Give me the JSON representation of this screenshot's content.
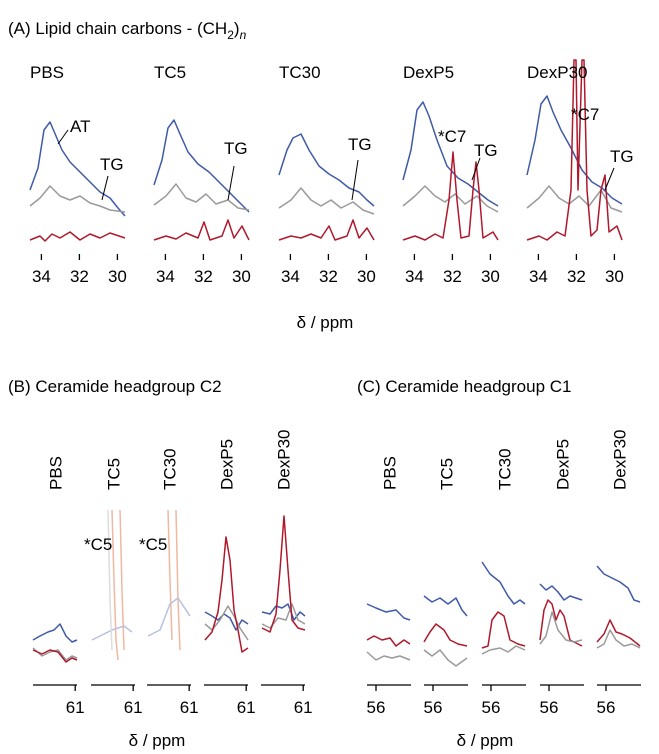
{
  "panel_a": {
    "title": {
      "text": "(A) Lipid chain carbons - (CH",
      "sub": "2",
      "close": ")",
      "sub2": "n"
    },
    "subpanels": [
      "PBS",
      "TC5",
      "TC30",
      "DexP5",
      "DexP30"
    ],
    "xlim": [
      34.6,
      29.6
    ],
    "xticks": [
      34,
      32,
      30
    ],
    "xlabel": "δ / ppm",
    "annotations": [
      "AT",
      "TG",
      "TG",
      "TG",
      "*C7",
      "TG",
      "*C7",
      "TG"
    ]
  },
  "panel_b": {
    "title": "(B) Ceramide headgroup C2",
    "subpanels": [
      "PBS",
      "TC5",
      "TC30",
      "DexP5",
      "DexP30"
    ],
    "xlim": [
      62.5,
      60.9
    ],
    "xticks": [
      61
    ],
    "xlabel": "δ / ppm",
    "annotations": [
      "*C5",
      "*C5"
    ]
  },
  "panel_c": {
    "title": "(C) Ceramide headgroup C1",
    "subpanels": [
      "PBS",
      "TC5",
      "TC30",
      "DexP5",
      "DexP30"
    ],
    "xlim": [
      56.3,
      54.8
    ],
    "xticks": [
      56
    ],
    "xlabel": "δ / ppm"
  }
}
